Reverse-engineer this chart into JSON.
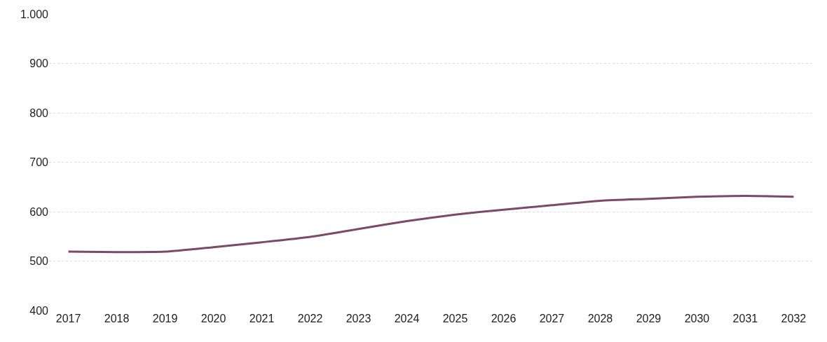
{
  "chart_data": {
    "type": "line",
    "categories": [
      "2017",
      "2018",
      "2019",
      "2020",
      "2021",
      "2022",
      "2023",
      "2024",
      "2025",
      "2026",
      "2027",
      "2028",
      "2029",
      "2030",
      "2031",
      "2032"
    ],
    "series": [
      {
        "color": "#7a4a66",
        "values": [
          519,
          518,
          519,
          528,
          538,
          549,
          565,
          581,
          594,
          604,
          613,
          622,
          626,
          630,
          632,
          630
        ]
      }
    ],
    "ylim": [
      400,
      1000
    ],
    "yticks": [
      400,
      500,
      600,
      700,
      800,
      900,
      {
        "value": 1000,
        "label": "1.000"
      }
    ],
    "grid": "y",
    "marker": "none",
    "line_style": "solid"
  }
}
